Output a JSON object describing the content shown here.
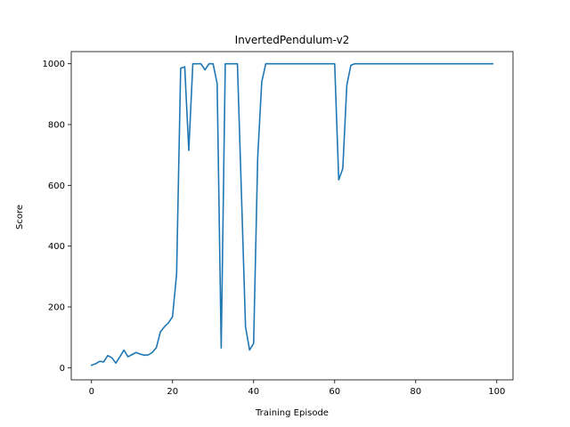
{
  "chart_data": {
    "type": "line",
    "title": "InvertedPendulum-v2",
    "xlabel": "Training Episode",
    "ylabel": "Score",
    "xlim": [
      -5,
      104
    ],
    "ylim": [
      -40,
      1040
    ],
    "xticks": [
      0,
      20,
      40,
      60,
      80,
      100
    ],
    "yticks": [
      0,
      200,
      400,
      600,
      800,
      1000
    ],
    "grid": false,
    "line_color": "#1f77b4",
    "series": [
      {
        "points": [
          [
            0,
            8
          ],
          [
            1,
            13
          ],
          [
            2,
            21
          ],
          [
            3,
            19
          ],
          [
            4,
            40
          ],
          [
            5,
            33
          ],
          [
            6,
            15
          ],
          [
            7,
            36
          ],
          [
            8,
            58
          ],
          [
            9,
            36
          ],
          [
            10,
            43
          ],
          [
            11,
            50
          ],
          [
            12,
            45
          ],
          [
            13,
            41
          ],
          [
            14,
            42
          ],
          [
            15,
            50
          ],
          [
            16,
            66
          ],
          [
            17,
            118
          ],
          [
            18,
            135
          ],
          [
            19,
            148
          ],
          [
            20,
            168
          ],
          [
            21,
            310
          ],
          [
            22,
            985
          ],
          [
            23,
            990
          ],
          [
            24,
            715
          ],
          [
            25,
            1000
          ],
          [
            26,
            1000
          ],
          [
            27,
            1000
          ],
          [
            28,
            980
          ],
          [
            29,
            1000
          ],
          [
            30,
            1000
          ],
          [
            31,
            935
          ],
          [
            32,
            65
          ],
          [
            33,
            1000
          ],
          [
            34,
            1000
          ],
          [
            35,
            1000
          ],
          [
            36,
            1000
          ],
          [
            37,
            570
          ],
          [
            38,
            135
          ],
          [
            39,
            58
          ],
          [
            40,
            80
          ],
          [
            41,
            690
          ],
          [
            42,
            940
          ],
          [
            43,
            1000
          ],
          [
            44,
            1000
          ],
          [
            45,
            1000
          ],
          [
            46,
            1000
          ],
          [
            47,
            1000
          ],
          [
            48,
            1000
          ],
          [
            49,
            1000
          ],
          [
            50,
            1000
          ],
          [
            51,
            1000
          ],
          [
            52,
            1000
          ],
          [
            53,
            1000
          ],
          [
            54,
            1000
          ],
          [
            55,
            1000
          ],
          [
            56,
            1000
          ],
          [
            57,
            1000
          ],
          [
            58,
            1000
          ],
          [
            59,
            1000
          ],
          [
            60,
            1000
          ],
          [
            61,
            618
          ],
          [
            62,
            655
          ],
          [
            63,
            930
          ],
          [
            64,
            995
          ],
          [
            65,
            1000
          ],
          [
            66,
            1000
          ],
          [
            67,
            1000
          ],
          [
            68,
            1000
          ],
          [
            69,
            1000
          ],
          [
            70,
            1000
          ],
          [
            71,
            1000
          ],
          [
            72,
            1000
          ],
          [
            73,
            1000
          ],
          [
            74,
            1000
          ],
          [
            75,
            1000
          ],
          [
            76,
            1000
          ],
          [
            77,
            1000
          ],
          [
            78,
            1000
          ],
          [
            79,
            1000
          ],
          [
            80,
            1000
          ],
          [
            81,
            1000
          ],
          [
            82,
            1000
          ],
          [
            83,
            1000
          ],
          [
            84,
            1000
          ],
          [
            85,
            1000
          ],
          [
            86,
            1000
          ],
          [
            87,
            1000
          ],
          [
            88,
            1000
          ],
          [
            89,
            1000
          ],
          [
            90,
            1000
          ],
          [
            91,
            1000
          ],
          [
            92,
            1000
          ],
          [
            93,
            1000
          ],
          [
            94,
            1000
          ],
          [
            95,
            1000
          ],
          [
            96,
            1000
          ],
          [
            97,
            1000
          ],
          [
            98,
            1000
          ],
          [
            99,
            1000
          ]
        ]
      }
    ]
  }
}
